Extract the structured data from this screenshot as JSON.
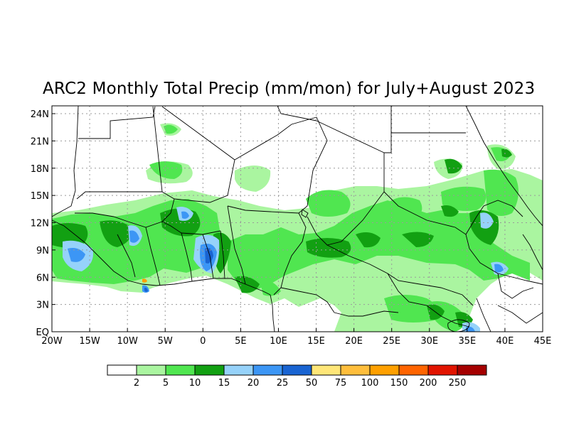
{
  "title": "ARC2 Monthly Total Precip (mm/mon) for July+August 2023",
  "x_ticks": [
    "20W",
    "15W",
    "10W",
    "5W",
    "0",
    "5E",
    "10E",
    "15E",
    "20E",
    "25E",
    "30E",
    "35E",
    "40E",
    "45E"
  ],
  "y_ticks": [
    "EQ",
    "3N",
    "6N",
    "9N",
    "12N",
    "15N",
    "18N",
    "21N",
    "24N"
  ],
  "colorbar": {
    "colors": [
      "#ffffff",
      "#aaf5a0",
      "#50e650",
      "#12a012",
      "#96d2fa",
      "#3c96f5",
      "#1964d2",
      "#ffe678",
      "#ffbe3c",
      "#ffa000",
      "#ff6400",
      "#e11400",
      "#a50000"
    ],
    "labels": [
      "2",
      "5",
      "10",
      "15",
      "20",
      "25",
      "50",
      "75",
      "100",
      "150",
      "200",
      "250"
    ]
  },
  "colors": {
    "light_green": "#aaf5a0",
    "green": "#50e650",
    "dark_green": "#12a012",
    "light_blue": "#96d2fa",
    "blue": "#3c96f5",
    "dark_blue": "#1964d2",
    "orange": "#ffa000"
  }
}
